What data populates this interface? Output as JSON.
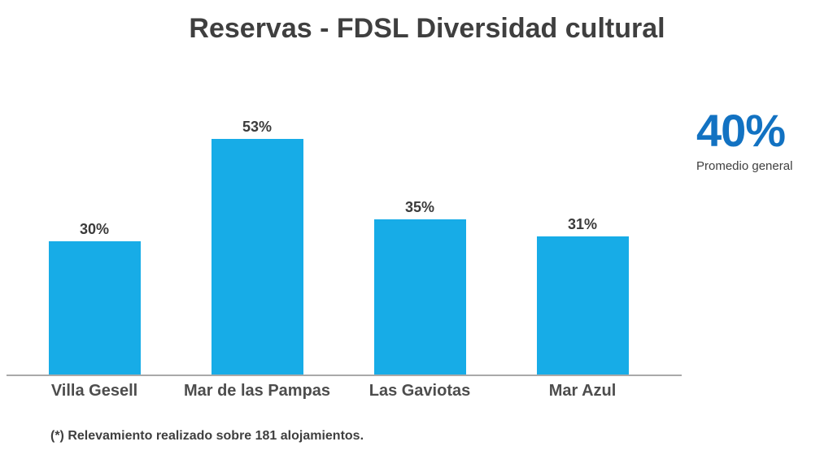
{
  "page": {
    "title": "Reservas - FDSL Diversidad cultural",
    "footnote": "(*) Relevamiento realizado sobre 181 alojamientos."
  },
  "average": {
    "value": "40%",
    "label": "Promedio general"
  },
  "colors": {
    "bar": "#17ace7",
    "accent_blue": "#1272c2",
    "text_dark": "#3f3f3f",
    "axis_line": "#a9a9a9"
  },
  "chart_data": {
    "type": "bar",
    "title": "Reservas - FDSL Diversidad cultural",
    "categories": [
      "Villa Gesell",
      "Mar de las Pampas",
      "Las Gaviotas",
      "Mar Azul"
    ],
    "values": [
      30,
      53,
      35,
      31
    ],
    "value_labels": [
      "30%",
      "53%",
      "35%",
      "31%"
    ],
    "xlabel": "",
    "ylabel": "",
    "ylim": [
      0,
      60
    ],
    "grid": false,
    "legend": false,
    "bar_color": "#17ace7",
    "annotation": {
      "text": "40%",
      "label": "Promedio general",
      "position": "right"
    }
  }
}
